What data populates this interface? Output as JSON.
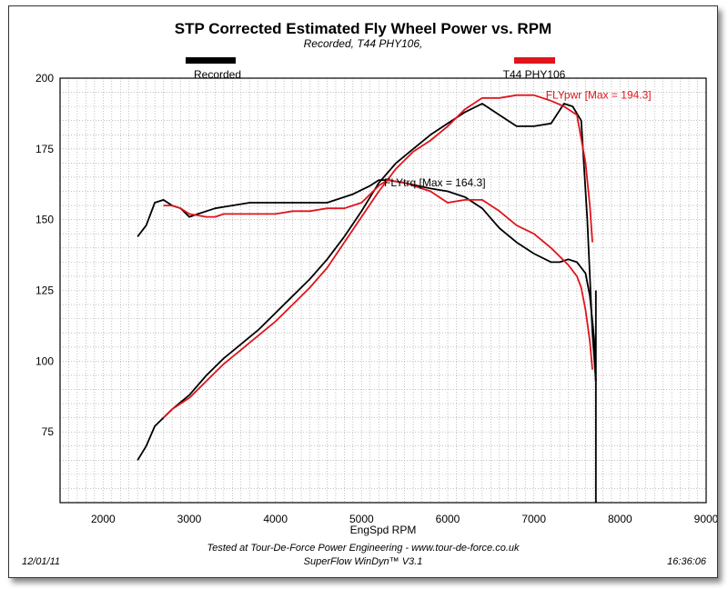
{
  "colors": {
    "recorded": "#000000",
    "t44": "#e0141c",
    "grid": "#9a9a9a"
  },
  "chart_data": {
    "type": "line",
    "title": "STP Corrected Estimated Fly Wheel Power vs. RPM",
    "subtitle": "Recorded, T44 PHY106,",
    "xlabel": "EngSpd RPM",
    "ylabel": "",
    "xlim": [
      1500,
      9000
    ],
    "ylim": [
      50,
      200
    ],
    "x_ticks": [
      2000,
      3000,
      4000,
      5000,
      6000,
      7000,
      8000,
      9000
    ],
    "y_ticks": [
      75,
      100,
      125,
      150,
      175,
      200
    ],
    "grid": true,
    "legend": [
      {
        "name": "Recorded",
        "position": "top-left"
      },
      {
        "name": "T44 PHY106",
        "position": "top-right"
      }
    ],
    "annotations": [
      {
        "text": "FLYpwr [Max = 194.3]",
        "series": "T44 PHY106",
        "x": 7750,
        "y": 194
      },
      {
        "text": "FLYtrq [Max = 164.3]",
        "series": "Recorded",
        "x": 5850,
        "y": 163
      }
    ],
    "series": [
      {
        "name": "Recorded",
        "quantity": "FLYpwr",
        "x": [
          2400,
          2500,
          2600,
          2700,
          2800,
          3000,
          3200,
          3400,
          3600,
          3800,
          4000,
          4200,
          4400,
          4600,
          4800,
          5000,
          5200,
          5400,
          5600,
          5800,
          6000,
          6200,
          6400,
          6600,
          6800,
          7000,
          7200,
          7350,
          7450,
          7550,
          7620,
          7680,
          7720
        ],
        "y": [
          65,
          70,
          77,
          80,
          83,
          88,
          95,
          101,
          106,
          111,
          117,
          123,
          129,
          136,
          144,
          153,
          163,
          170,
          175,
          180,
          184,
          188,
          191,
          187,
          183,
          183,
          184,
          191,
          190,
          185,
          150,
          110,
          93
        ]
      },
      {
        "name": "Recorded",
        "quantity": "FLYtrq",
        "x": [
          2400,
          2500,
          2600,
          2700,
          2800,
          2900,
          3000,
          3100,
          3200,
          3300,
          3500,
          3700,
          4000,
          4300,
          4600,
          4900,
          5100,
          5200,
          5300,
          5500,
          5800,
          6000,
          6200,
          6400,
          6600,
          6800,
          7000,
          7200,
          7300,
          7400,
          7500,
          7600,
          7650,
          7700,
          7720
        ],
        "y": [
          144,
          148,
          156,
          157,
          155,
          154,
          151,
          152,
          153,
          154,
          155,
          156,
          156,
          156,
          156,
          159,
          162,
          164,
          164,
          163,
          161,
          160,
          158,
          154,
          147,
          142,
          138,
          135,
          135,
          136,
          135,
          131,
          123,
          108,
          93
        ]
      },
      {
        "name": "T44 PHY106",
        "quantity": "FLYpwr",
        "x": [
          2700,
          2800,
          3000,
          3200,
          3400,
          3600,
          3800,
          4000,
          4200,
          4400,
          4600,
          4800,
          5000,
          5200,
          5400,
          5600,
          5800,
          6000,
          6200,
          6400,
          6600,
          6800,
          7000,
          7200,
          7350,
          7500,
          7600,
          7650,
          7680
        ],
        "y": [
          80,
          83,
          87,
          93,
          99,
          104,
          109,
          114,
          120,
          126,
          133,
          142,
          151,
          160,
          168,
          174,
          178,
          183,
          189,
          193,
          193,
          194,
          194,
          192,
          190,
          187,
          170,
          155,
          142
        ]
      },
      {
        "name": "T44 PHY106",
        "quantity": "FLYtrq",
        "x": [
          2700,
          2800,
          2900,
          3000,
          3200,
          3300,
          3400,
          3600,
          3800,
          4000,
          4200,
          4400,
          4600,
          4800,
          5000,
          5200,
          5300,
          5500,
          5800,
          5900,
          6000,
          6200,
          6400,
          6600,
          6800,
          7000,
          7200,
          7400,
          7500,
          7550,
          7600,
          7650,
          7680
        ],
        "y": [
          155,
          155,
          154,
          152,
          151,
          151,
          152,
          152,
          152,
          152,
          153,
          153,
          154,
          154,
          156,
          162,
          164,
          163,
          160,
          158,
          156,
          157,
          157,
          153,
          148,
          145,
          140,
          134,
          130,
          126,
          118,
          107,
          97
        ]
      }
    ]
  },
  "footer": {
    "date": "12/01/11",
    "time": "16:36:06",
    "tested_by": "Tested at Tour-De-Force Power Engineering - www.tour-de-force.co.uk",
    "software": "SuperFlow WinDyn™ V3.1"
  }
}
